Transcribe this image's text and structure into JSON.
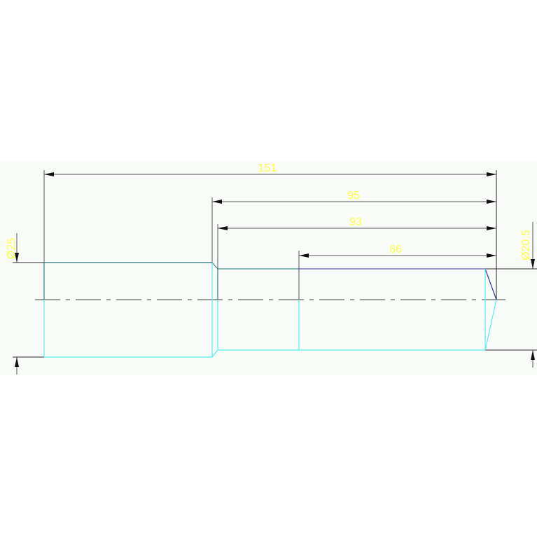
{
  "drawing": {
    "colors": {
      "background": "#f9fbf9",
      "dimension_line": "#555555",
      "dimension_text": "#ffff44",
      "outline_cyan": "#55eeee",
      "outline_dark": "#3f8f8f",
      "outline_purple": "#6655cc",
      "centerline": "#666666"
    },
    "dimensions": {
      "overall_length": "151",
      "length_95": "95",
      "length_93": "93",
      "length_66": "66",
      "diameter_large": "Ø25",
      "diameter_small": "Ø20.5"
    }
  }
}
